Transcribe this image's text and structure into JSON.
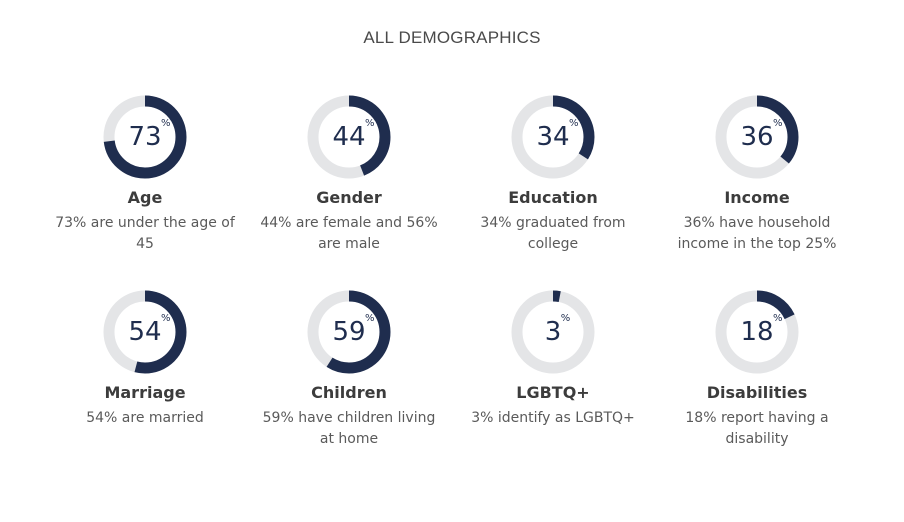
{
  "page": {
    "title": "ALL DEMOGRAPHICS"
  },
  "colors": {
    "accent": "#1f2d4e",
    "track": "#e4e5e7"
  },
  "stats": [
    {
      "value": 73,
      "unit": "%",
      "label": "Age",
      "desc": "73% are under the age of 45"
    },
    {
      "value": 44,
      "unit": "%",
      "label": "Gender",
      "desc": "44% are female and 56% are male"
    },
    {
      "value": 34,
      "unit": "%",
      "label": "Education",
      "desc": "34% graduated from college"
    },
    {
      "value": 36,
      "unit": "%",
      "label": "Income",
      "desc": "36% have household income in the top 25%"
    },
    {
      "value": 54,
      "unit": "%",
      "label": "Marriage",
      "desc": "54% are married"
    },
    {
      "value": 59,
      "unit": "%",
      "label": "Children",
      "desc": "59% have children living at home"
    },
    {
      "value": 3,
      "unit": "%",
      "label": "LGBTQ+",
      "desc": "3% identify as LGBTQ+"
    },
    {
      "value": 18,
      "unit": "%",
      "label": "Disabilities",
      "desc": "18% report having a disability"
    }
  ],
  "chart_data": {
    "type": "pie",
    "title": "ALL DEMOGRAPHICS",
    "categories": [
      "Age",
      "Gender",
      "Education",
      "Income",
      "Marriage",
      "Children",
      "LGBTQ+",
      "Disabilities"
    ],
    "values": [
      73,
      44,
      34,
      36,
      54,
      59,
      3,
      18
    ],
    "unit": "%",
    "ylim": [
      0,
      100
    ]
  }
}
